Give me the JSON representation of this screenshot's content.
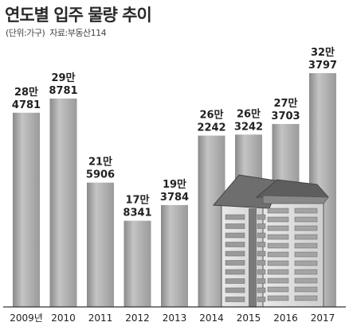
{
  "title": "연도별 입주 물량 추이",
  "unit": "(단위:가구)",
  "source": "자료:부동산114",
  "chart_data": {
    "type": "bar",
    "categories": [
      "2009년",
      "2010",
      "2011",
      "2012",
      "2013",
      "2014",
      "2015",
      "2016",
      "2017"
    ],
    "values": [
      284781,
      298781,
      215906,
      178341,
      193784,
      262242,
      263242,
      273703,
      323797
    ],
    "value_labels": [
      [
        "28만",
        "4781"
      ],
      [
        "29만",
        "8781"
      ],
      [
        "21만",
        "5906"
      ],
      [
        "17만",
        "8341"
      ],
      [
        "19만",
        "3784"
      ],
      [
        "26만",
        "2242"
      ],
      [
        "26만",
        "3242"
      ],
      [
        "27만",
        "3703"
      ],
      [
        "32만",
        "3797"
      ]
    ],
    "ylim": [
      0,
      340000
    ],
    "xlabel": "",
    "ylabel": "",
    "grid": false,
    "legend": "none"
  }
}
